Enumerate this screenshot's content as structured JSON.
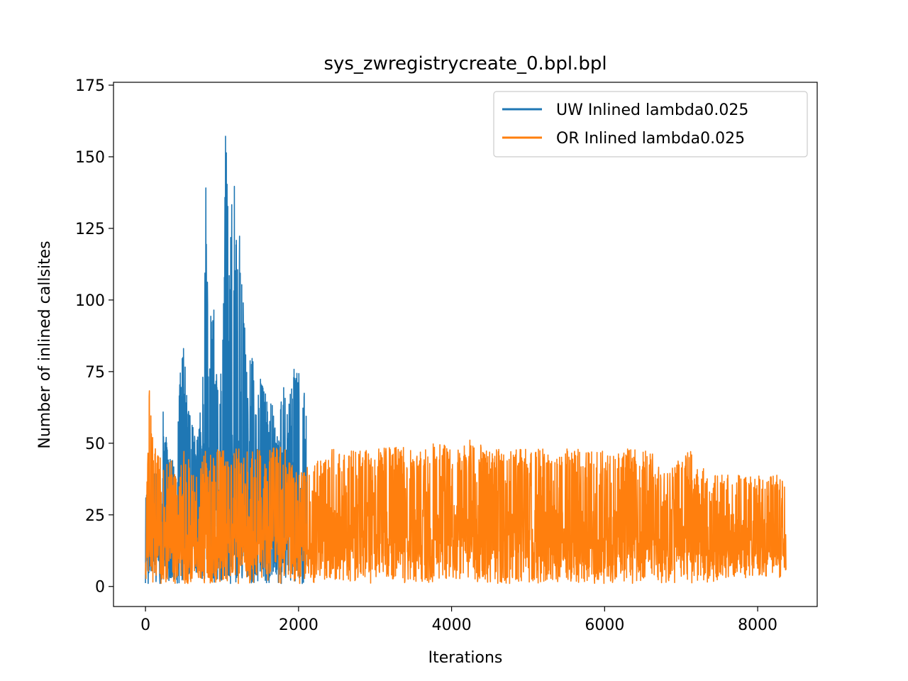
{
  "chart_data": {
    "type": "line",
    "title": "sys_zwregistrycreate_0.bpl.bpl",
    "xlabel": "Iterations",
    "ylabel": "Number of inlined callsites",
    "xlim": [
      -418,
      8778
    ],
    "ylim": [
      -7,
      176
    ],
    "x_ticks": [
      0,
      2000,
      4000,
      6000,
      8000
    ],
    "y_ticks": [
      0,
      25,
      50,
      75,
      100,
      125,
      150,
      175
    ],
    "grid": false,
    "legend_position": "top-right",
    "series": [
      {
        "name": "UW Inlined lambda0.025",
        "color": "#1f77b4",
        "x_range": [
          0,
          2100
        ],
        "envelope": [
          [
            0,
            1,
            31
          ],
          [
            100,
            1,
            40
          ],
          [
            200,
            1,
            38
          ],
          [
            230,
            1,
            62
          ],
          [
            300,
            1,
            45
          ],
          [
            350,
            1,
            45
          ],
          [
            400,
            1,
            40
          ],
          [
            450,
            1,
            73
          ],
          [
            500,
            1,
            90
          ],
          [
            550,
            1,
            62
          ],
          [
            600,
            1,
            67
          ],
          [
            650,
            1,
            50
          ],
          [
            700,
            1,
            55
          ],
          [
            750,
            1,
            82
          ],
          [
            790,
            1,
            145
          ],
          [
            830,
            1,
            87
          ],
          [
            880,
            1,
            108
          ],
          [
            930,
            1,
            82
          ],
          [
            980,
            1,
            72
          ],
          [
            1000,
            1,
            82
          ],
          [
            1050,
            1,
            167
          ],
          [
            1100,
            1,
            117
          ],
          [
            1150,
            1,
            159
          ],
          [
            1180,
            1,
            136
          ],
          [
            1230,
            1,
            127
          ],
          [
            1280,
            1,
            97
          ],
          [
            1350,
            1,
            72
          ],
          [
            1400,
            1,
            93
          ],
          [
            1450,
            1,
            58
          ],
          [
            1500,
            1,
            76
          ],
          [
            1550,
            1,
            70
          ],
          [
            1600,
            1,
            72
          ],
          [
            1650,
            1,
            65
          ],
          [
            1700,
            1,
            58
          ],
          [
            1750,
            1,
            60
          ],
          [
            1800,
            1,
            72
          ],
          [
            1850,
            1,
            62
          ],
          [
            1900,
            1,
            70
          ],
          [
            1950,
            1,
            80
          ],
          [
            2000,
            1,
            75
          ],
          [
            2050,
            1,
            76
          ],
          [
            2100,
            1,
            63
          ]
        ]
      },
      {
        "name": "OR Inlined lambda0.025",
        "color": "#ff7f0e",
        "x_range": [
          0,
          8370
        ],
        "envelope": [
          [
            0,
            1,
            19
          ],
          [
            50,
            1,
            74
          ],
          [
            100,
            1,
            50
          ],
          [
            200,
            1,
            45
          ],
          [
            300,
            1,
            48
          ],
          [
            400,
            1,
            38
          ],
          [
            500,
            1,
            48
          ],
          [
            600,
            1,
            43
          ],
          [
            800,
            1,
            48
          ],
          [
            1000,
            1,
            48
          ],
          [
            1200,
            1,
            48
          ],
          [
            1400,
            1,
            48
          ],
          [
            1600,
            1,
            48
          ],
          [
            1800,
            1,
            49
          ],
          [
            2000,
            1,
            39
          ],
          [
            2400,
            1,
            48
          ],
          [
            2800,
            1,
            48
          ],
          [
            3000,
            1,
            48
          ],
          [
            3300,
            1,
            49
          ],
          [
            3600,
            1,
            48
          ],
          [
            3800,
            1,
            51
          ],
          [
            4000,
            1,
            48
          ],
          [
            4180,
            1,
            52
          ],
          [
            4500,
            1,
            48
          ],
          [
            4800,
            1,
            48
          ],
          [
            5000,
            1,
            48
          ],
          [
            5200,
            1,
            48
          ],
          [
            5500,
            1,
            48
          ],
          [
            5700,
            1,
            48
          ],
          [
            5800,
            1,
            48
          ],
          [
            6000,
            1,
            48
          ],
          [
            6200,
            1,
            48
          ],
          [
            6400,
            1,
            48
          ],
          [
            6600,
            1,
            48
          ],
          [
            6800,
            1,
            39
          ],
          [
            7100,
            1,
            48
          ],
          [
            7400,
            1,
            39
          ],
          [
            7700,
            3,
            39
          ],
          [
            8000,
            3,
            39
          ],
          [
            8370,
            3,
            39
          ]
        ]
      }
    ]
  }
}
